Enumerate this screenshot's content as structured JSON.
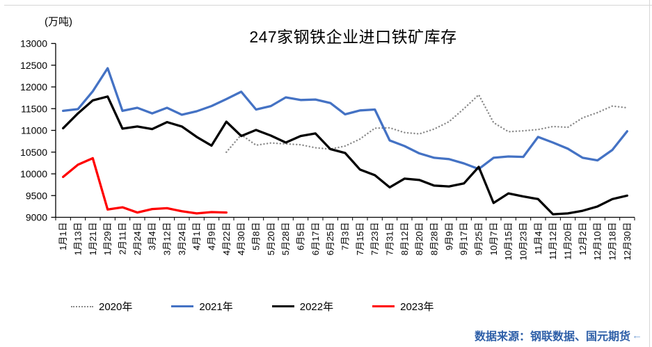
{
  "page": {
    "source_note": "数据来源：钢联数据、国元期货",
    "paragraph_mark": "←",
    "source_color": "#2E5FA8",
    "paragraph_mark_color": "#7AA3D6",
    "edge_line_color": "#d6d6d6"
  },
  "chart_data": {
    "type": "line",
    "title": "247家钢铁企业进口铁矿库存",
    "unit_label": "(万吨)",
    "xlabel": "",
    "ylabel": "",
    "ylim": [
      9000,
      13000
    ],
    "yticks": [
      13000,
      12500,
      12000,
      11500,
      11000,
      10500,
      10000,
      9500,
      9000
    ],
    "grid": false,
    "legend_position": "bottom",
    "categories": [
      "1月1日",
      "1月13日",
      "1月21日",
      "1月29日",
      "2月11日",
      "2月24日",
      "3月4日",
      "3月12日",
      "3月24日",
      "4月1日",
      "4月9日",
      "4月22日",
      "4月30日",
      "5月8日",
      "5月20日",
      "5月28日",
      "6月5日",
      "6月17日",
      "6月25日",
      "7月3日",
      "7月15日",
      "7月23日",
      "7月31日",
      "8月12日",
      "8月20日",
      "8月28日",
      "9月9日",
      "9月17日",
      "9月25日",
      "10月7日",
      "10月15日",
      "10月23日",
      "11月4日",
      "11月12日",
      "11月20日",
      "12月2日",
      "12月10日",
      "12月18日",
      "12月30日"
    ],
    "series": [
      {
        "name": "2020年",
        "color": "#8a8a8a",
        "style": "dotted",
        "start_index": 11,
        "values": [
          10500,
          10900,
          10660,
          10710,
          10690,
          10670,
          10600,
          10570,
          10640,
          10800,
          11050,
          11060,
          10950,
          10920,
          11030,
          11200,
          11500,
          11820,
          11180,
          10970,
          10990,
          11020,
          11090,
          11070,
          11290,
          11410,
          11560,
          11520
        ]
      },
      {
        "name": "2021年",
        "color": "#4472C4",
        "style": "solid",
        "start_index": 0,
        "values": [
          11450,
          11490,
          11900,
          12430,
          11450,
          11520,
          11390,
          11520,
          11360,
          11440,
          11560,
          11720,
          11890,
          11480,
          11560,
          11760,
          11700,
          11710,
          11630,
          11370,
          11460,
          11480,
          10770,
          10640,
          10470,
          10370,
          10340,
          10240,
          10110,
          10370,
          10400,
          10390,
          10850,
          10720,
          10580,
          10370,
          10310,
          10550,
          10980
        ]
      },
      {
        "name": "2022年",
        "color": "#000000",
        "style": "solid",
        "start_index": 0,
        "values": [
          11050,
          11390,
          11690,
          11780,
          11040,
          11090,
          11030,
          11190,
          11090,
          10850,
          10650,
          11200,
          10870,
          11010,
          10880,
          10720,
          10870,
          10930,
          10570,
          10480,
          10100,
          9970,
          9690,
          9890,
          9860,
          9730,
          9710,
          9780,
          10160,
          9330,
          9550,
          9480,
          9420,
          9070,
          9090,
          9150,
          9250,
          9420,
          9500
        ]
      },
      {
        "name": "2023年",
        "color": "#FF0000",
        "style": "solid",
        "start_index": 0,
        "values": [
          9930,
          10210,
          10360,
          9180,
          9230,
          9110,
          9190,
          9210,
          9140,
          9090,
          9120,
          9110
        ]
      }
    ]
  }
}
